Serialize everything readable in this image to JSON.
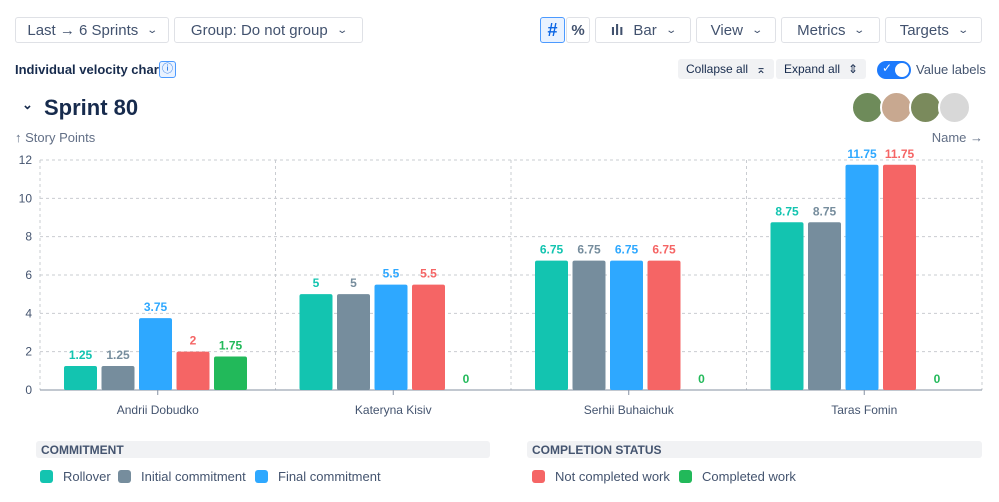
{
  "toolbar": {
    "range": "Last → 6 Sprints",
    "group": "Group: Do not group",
    "hash": "#",
    "percent": "%",
    "chart_type": "Bar",
    "view": "View",
    "metrics": "Metrics",
    "targets": "Targets"
  },
  "header": {
    "title": "Individual velocity chart",
    "collapse_all": "Collapse all",
    "expand_all": "Expand all",
    "value_labels": "Value labels",
    "value_labels_on": true
  },
  "sprint": {
    "title": "Sprint 80",
    "avatars": [
      {
        "color": "#6e8b5a"
      },
      {
        "color": "#c8a890"
      },
      {
        "color": "#7a8a5c"
      },
      {
        "color": "#d8d8d8"
      }
    ]
  },
  "chart_data": {
    "type": "bar",
    "ylabel": "↑ Story Points",
    "xlabel": "Name →",
    "ylim": [
      0,
      12
    ],
    "yticks": [
      0,
      2,
      4,
      6,
      8,
      10,
      12
    ],
    "grid": true,
    "categories": [
      "Andrii Dobudko",
      "Kateryna Kisiv",
      "Serhii Buhaichuk",
      "Taras Fomin"
    ],
    "series": [
      {
        "name": "Rollover",
        "color": "#13c4b0",
        "values": [
          1.25,
          5,
          6.75,
          8.75
        ]
      },
      {
        "name": "Initial commitment",
        "color": "#768d9d",
        "values": [
          1.25,
          5,
          6.75,
          8.75
        ]
      },
      {
        "name": "Final commitment",
        "color": "#2ea8ff",
        "values": [
          3.75,
          5.5,
          6.75,
          11.75
        ]
      },
      {
        "name": "Not completed work",
        "color": "#f56565",
        "values": [
          2,
          5.5,
          6.75,
          11.75
        ]
      },
      {
        "name": "Completed work",
        "color": "#22b95a",
        "values": [
          1.75,
          0,
          0,
          0
        ]
      }
    ]
  },
  "legend": {
    "commitment_title": "COMMITMENT",
    "completion_title": "COMPLETION STATUS",
    "items": [
      "Rollover",
      "Initial commitment",
      "Final commitment",
      "Not completed work",
      "Completed work"
    ]
  }
}
